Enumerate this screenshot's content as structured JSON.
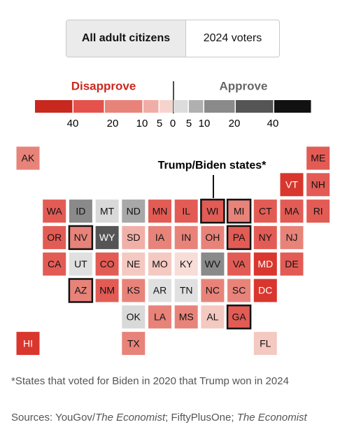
{
  "toggle": {
    "options": [
      "All adult citizens",
      "2024 voters"
    ],
    "selected": 0
  },
  "legend": {
    "disapprove_label": "Disapprove",
    "approve_label": "Approve",
    "colors": [
      "#c9281f",
      "#e4524b",
      "#e8837a",
      "#f0ada6",
      "#f7d3cd",
      "#dcdcdc",
      "#b0b0b0",
      "#8a8a8a",
      "#555555",
      "#111111"
    ],
    "ticks": [
      40,
      20,
      10,
      5,
      0,
      5,
      10,
      20,
      40
    ]
  },
  "annotation": "Trump/Biden states*",
  "states": [
    {
      "label": "AK",
      "color": "#e8837a"
    },
    {
      "label": "ME",
      "color": "#e25c55"
    },
    {
      "label": "VT",
      "color": "#d9362e"
    },
    {
      "label": "NH",
      "color": "#e25c55"
    },
    {
      "label": "WA",
      "color": "#e25c55"
    },
    {
      "label": "ID",
      "color": "#8a8a8a"
    },
    {
      "label": "MT",
      "color": "#d9d9d9"
    },
    {
      "label": "ND",
      "color": "#a8a8a8"
    },
    {
      "label": "MN",
      "color": "#e25c55"
    },
    {
      "label": "IL",
      "color": "#e25c55"
    },
    {
      "label": "WI",
      "color": "#e25c55",
      "highlighted": true
    },
    {
      "label": "MI",
      "color": "#e8837a",
      "highlighted": true
    },
    {
      "label": "CT",
      "color": "#e25c55"
    },
    {
      "label": "MA",
      "color": "#e25c55"
    },
    {
      "label": "RI",
      "color": "#e25c55"
    },
    {
      "label": "OR",
      "color": "#e25c55"
    },
    {
      "label": "NV",
      "color": "#e8837a",
      "highlighted": true
    },
    {
      "label": "WY",
      "color": "#555555"
    },
    {
      "label": "SD",
      "color": "#f0b0a8"
    },
    {
      "label": "IA",
      "color": "#e8837a"
    },
    {
      "label": "IN",
      "color": "#e8837a"
    },
    {
      "label": "OH",
      "color": "#e8837a"
    },
    {
      "label": "PA",
      "color": "#e25c55",
      "highlighted": true
    },
    {
      "label": "NY",
      "color": "#e25c55"
    },
    {
      "label": "NJ",
      "color": "#e8837a"
    },
    {
      "label": "CA",
      "color": "#e25c55"
    },
    {
      "label": "UT",
      "color": "#e0e0e0"
    },
    {
      "label": "CO",
      "color": "#e25c55"
    },
    {
      "label": "NE",
      "color": "#f4c9c2"
    },
    {
      "label": "MO",
      "color": "#f4c9c2"
    },
    {
      "label": "KY",
      "color": "#f7dcd8"
    },
    {
      "label": "WV",
      "color": "#8a8a8a"
    },
    {
      "label": "VA",
      "color": "#e25c55"
    },
    {
      "label": "MD",
      "color": "#d9362e"
    },
    {
      "label": "DE",
      "color": "#e25c55"
    },
    {
      "label": "AZ",
      "color": "#e8837a",
      "highlighted": true
    },
    {
      "label": "NM",
      "color": "#e25c55"
    },
    {
      "label": "KS",
      "color": "#e8837a"
    },
    {
      "label": "AR",
      "color": "#e0e0e0"
    },
    {
      "label": "TN",
      "color": "#e0e0e0"
    },
    {
      "label": "NC",
      "color": "#e8837a"
    },
    {
      "label": "SC",
      "color": "#e8837a"
    },
    {
      "label": "DC",
      "color": "#d9362e"
    },
    {
      "label": "OK",
      "color": "#d9d9d9"
    },
    {
      "label": "LA",
      "color": "#e8837a"
    },
    {
      "label": "MS",
      "color": "#e8837a"
    },
    {
      "label": "AL",
      "color": "#f4c9c2"
    },
    {
      "label": "GA",
      "color": "#e25c55",
      "highlighted": true
    },
    {
      "label": "HI",
      "color": "#d9362e"
    },
    {
      "label": "TX",
      "color": "#e8837a"
    },
    {
      "label": "FL",
      "color": "#f4c9c2"
    }
  ],
  "footnote": "*States that voted for Biden in 2020 that Trump won in 2024",
  "sources": [
    {
      "text": "Sources: YouGov/"
    },
    {
      "text": "The Economist",
      "italic": true
    },
    {
      "text": "; FiftyPlusOne; "
    },
    {
      "text": "The Economist",
      "italic": true
    }
  ]
}
